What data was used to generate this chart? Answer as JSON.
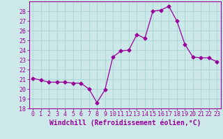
{
  "x": [
    0,
    1,
    2,
    3,
    4,
    5,
    6,
    7,
    8,
    9,
    10,
    11,
    12,
    13,
    14,
    15,
    16,
    17,
    18,
    19,
    20,
    21,
    22,
    23
  ],
  "y": [
    21.1,
    20.9,
    20.7,
    20.7,
    20.7,
    20.6,
    20.6,
    20.0,
    18.6,
    19.9,
    23.3,
    23.9,
    24.0,
    25.6,
    25.2,
    28.0,
    28.1,
    28.5,
    27.0,
    24.6,
    23.3,
    23.2,
    23.2,
    22.8
  ],
  "line_color": "#990099",
  "marker": "D",
  "marker_size": 2.5,
  "bg_color": "#cce8e8",
  "grid_color": "#b0d8d8",
  "xlabel": "Windchill (Refroidissement éolien,°C)",
  "ylabel": "",
  "title": "",
  "xlim": [
    -0.5,
    23.5
  ],
  "ylim": [
    18,
    29
  ],
  "yticks": [
    18,
    19,
    20,
    21,
    22,
    23,
    24,
    25,
    26,
    27,
    28
  ],
  "xticks": [
    0,
    1,
    2,
    3,
    4,
    5,
    6,
    7,
    8,
    9,
    10,
    11,
    12,
    13,
    14,
    15,
    16,
    17,
    18,
    19,
    20,
    21,
    22,
    23
  ],
  "xlabel_color": "#990099",
  "tick_color": "#990099",
  "spine_color": "#990099",
  "label_fontsize": 7.0,
  "tick_fontsize": 6.0
}
